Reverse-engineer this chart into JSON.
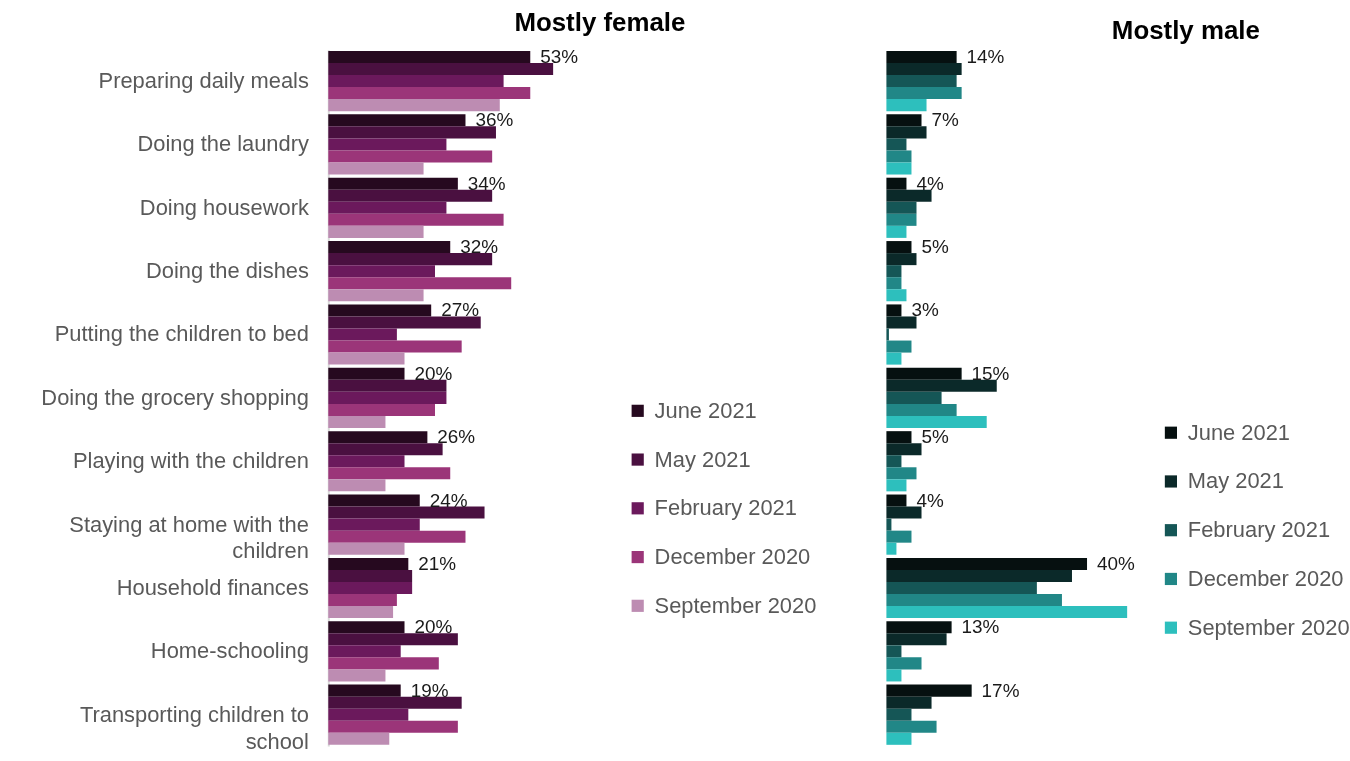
{
  "chart_data": [
    {
      "type": "bar",
      "orientation": "horizontal",
      "title": "Mostly female",
      "legend": "right",
      "tick_labels": "y",
      "categories": [
        "Preparing daily meals",
        "Doing the laundry",
        "Doing housework",
        "Doing the dishes",
        "Putting the children to bed",
        "Doing the grocery shopping",
        "Playing with the children",
        "Staying at home with the children",
        "Household finances",
        "Home-schooling",
        "Transporting children to school"
      ],
      "series": [
        {
          "name": "June 2021",
          "color": "#26091f",
          "values": [
            53,
            36,
            34,
            32,
            27,
            20,
            26,
            24,
            21,
            20,
            19
          ],
          "value_labels": [
            "53%",
            "36%",
            "34%",
            "32%",
            "27%",
            "20%",
            "26%",
            "24%",
            "21%",
            "20%",
            "19%"
          ]
        },
        {
          "name": "May 2021",
          "color": "#4a1040",
          "values": [
            59,
            44,
            43,
            43,
            40,
            31,
            30,
            41,
            22,
            34,
            35
          ]
        },
        {
          "name": "February 2021",
          "color": "#6b195c",
          "values": [
            46,
            31,
            31,
            28,
            18,
            31,
            20,
            24,
            22,
            19,
            21
          ]
        },
        {
          "name": "December 2020",
          "color": "#9b3579",
          "values": [
            53,
            43,
            46,
            48,
            35,
            28,
            32,
            36,
            18,
            29,
            34
          ]
        },
        {
          "name": "September 2020",
          "color": "#bd8cb2",
          "values": [
            45,
            25,
            25,
            25,
            20,
            15,
            15,
            20,
            17,
            15,
            16
          ]
        }
      ]
    },
    {
      "type": "bar",
      "orientation": "horizontal",
      "title": "Mostly male",
      "legend": "right",
      "tick_labels": false,
      "categories": [
        null,
        null,
        null,
        null,
        null,
        null,
        null,
        null,
        null,
        null,
        null
      ],
      "series": [
        {
          "name": "June 2021",
          "color": "#061010",
          "values": [
            14,
            7,
            4,
            5,
            3,
            15,
            5,
            4,
            40,
            13,
            17
          ],
          "value_labels": [
            "14%",
            "7%",
            "4%",
            "5%",
            "3%",
            "15%",
            "5%",
            "4%",
            "40%",
            "13%",
            "17%"
          ]
        },
        {
          "name": "May 2021",
          "color": "#0b2929",
          "values": [
            15,
            8,
            9,
            6,
            6,
            22,
            7,
            7,
            37,
            12,
            9
          ]
        },
        {
          "name": "February 2021",
          "color": "#155656",
          "values": [
            14,
            4,
            6,
            3,
            0.5,
            11,
            3,
            1,
            30,
            3,
            5
          ]
        },
        {
          "name": "December 2020",
          "color": "#218787",
          "values": [
            15,
            5,
            6,
            3,
            5,
            14,
            6,
            5,
            35,
            7,
            10
          ]
        },
        {
          "name": "September 2020",
          "color": "#2dbfbd",
          "values": [
            8,
            5,
            4,
            4,
            3,
            20,
            4,
            2,
            48,
            3,
            5
          ]
        }
      ]
    }
  ]
}
